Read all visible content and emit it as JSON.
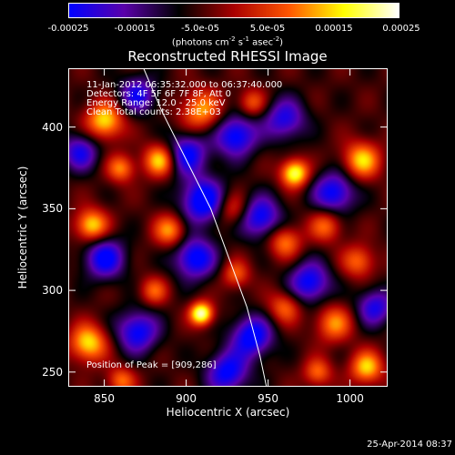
{
  "colorbar": {
    "ticks": [
      "-0.00025",
      "-0.00015",
      "-5.0e-05",
      "5.0e-05",
      "0.00015",
      "0.00025"
    ],
    "unit_text": "(photons cm",
    "unit_exp1": "-2",
    "unit_mid": " s",
    "unit_exp2": "-1",
    "unit_mid2": " asec",
    "unit_exp3": "-2",
    "unit_end": ")",
    "colors": [
      "#0000ff",
      "#5a00aa",
      "#000000",
      "#aa0000",
      "#ff5500",
      "#ffff00",
      "#ffffff"
    ]
  },
  "title": "Reconstructed RHESSI Image",
  "info": {
    "line1": "11-Jan-2012 06:35:32.000 to 06:37:40.000",
    "line2": "Detectors: 4F 5F 6F 7F 8F, Att 0",
    "line3": "Energy Range: 12.0 - 25.0 keV",
    "line4": "Clean     Total counts: 2.38E+03"
  },
  "peak_label": "Position of Peak = [909,286]",
  "timestamp": "25-Apr-2014 08:37",
  "chart_data": {
    "type": "heatmap",
    "title": "Reconstructed RHESSI Image",
    "xlabel": "Heliocentric X (arcsec)",
    "ylabel": "Heliocentric Y (arcsec)",
    "xlim": [
      828,
      1023
    ],
    "ylim": [
      241,
      436
    ],
    "xticks": [
      "850",
      "900",
      "950",
      "1000"
    ],
    "yticks": [
      "250",
      "300",
      "350",
      "400"
    ],
    "peak_position": [
      909,
      286
    ],
    "colorbar_range": [
      -0.00025,
      0.00025
    ],
    "blobs": [
      {
        "x": 909,
        "y": 286,
        "a": 1.0,
        "s": 5
      },
      {
        "x": 966,
        "y": 372,
        "a": 0.9,
        "s": 6
      },
      {
        "x": 850,
        "y": 404,
        "a": 0.75,
        "s": 8
      },
      {
        "x": 909,
        "y": 410,
        "a": 0.6,
        "s": 9
      },
      {
        "x": 884,
        "y": 380,
        "a": 0.75,
        "s": 7
      },
      {
        "x": 860,
        "y": 375,
        "a": 0.55,
        "s": 6
      },
      {
        "x": 842,
        "y": 340,
        "a": 0.75,
        "s": 7
      },
      {
        "x": 890,
        "y": 337,
        "a": 0.6,
        "s": 7
      },
      {
        "x": 928,
        "y": 350,
        "a": 0.45,
        "s": 7
      },
      {
        "x": 960,
        "y": 330,
        "a": 0.55,
        "s": 7
      },
      {
        "x": 985,
        "y": 340,
        "a": 0.5,
        "s": 7
      },
      {
        "x": 1007,
        "y": 380,
        "a": 0.7,
        "s": 8
      },
      {
        "x": 1005,
        "y": 318,
        "a": 0.5,
        "s": 7
      },
      {
        "x": 990,
        "y": 280,
        "a": 0.55,
        "s": 8
      },
      {
        "x": 960,
        "y": 290,
        "a": 0.5,
        "s": 7
      },
      {
        "x": 1010,
        "y": 253,
        "a": 0.7,
        "s": 7
      },
      {
        "x": 840,
        "y": 268,
        "a": 0.75,
        "s": 8
      },
      {
        "x": 880,
        "y": 300,
        "a": 0.45,
        "s": 6
      },
      {
        "x": 930,
        "y": 310,
        "a": 0.45,
        "s": 6
      },
      {
        "x": 980,
        "y": 250,
        "a": 0.5,
        "s": 6
      },
      {
        "x": 940,
        "y": 415,
        "a": 0.45,
        "s": 6
      },
      {
        "x": 860,
        "y": 245,
        "a": 0.5,
        "s": 6
      },
      {
        "x": 900,
        "y": 384,
        "a": -0.7,
        "s": 9
      },
      {
        "x": 930,
        "y": 395,
        "a": -0.75,
        "s": 9
      },
      {
        "x": 910,
        "y": 355,
        "a": -0.8,
        "s": 10
      },
      {
        "x": 945,
        "y": 345,
        "a": -0.7,
        "s": 9
      },
      {
        "x": 850,
        "y": 320,
        "a": -0.7,
        "s": 9
      },
      {
        "x": 905,
        "y": 320,
        "a": -0.75,
        "s": 9
      },
      {
        "x": 975,
        "y": 305,
        "a": -0.7,
        "s": 9
      },
      {
        "x": 940,
        "y": 272,
        "a": -0.75,
        "s": 9
      },
      {
        "x": 990,
        "y": 360,
        "a": -0.7,
        "s": 9
      },
      {
        "x": 870,
        "y": 275,
        "a": -0.7,
        "s": 9
      },
      {
        "x": 960,
        "y": 405,
        "a": -0.6,
        "s": 9
      },
      {
        "x": 1015,
        "y": 290,
        "a": -0.6,
        "s": 8
      },
      {
        "x": 870,
        "y": 420,
        "a": -0.6,
        "s": 8
      },
      {
        "x": 925,
        "y": 250,
        "a": -0.7,
        "s": 9
      },
      {
        "x": 835,
        "y": 385,
        "a": -0.6,
        "s": 8
      }
    ],
    "limb_curve": [
      [
        874,
        436
      ],
      [
        885,
        410
      ],
      [
        900,
        380
      ],
      [
        915,
        350
      ],
      [
        926,
        320
      ],
      [
        937,
        290
      ],
      [
        945,
        260
      ],
      [
        949,
        241
      ]
    ]
  }
}
